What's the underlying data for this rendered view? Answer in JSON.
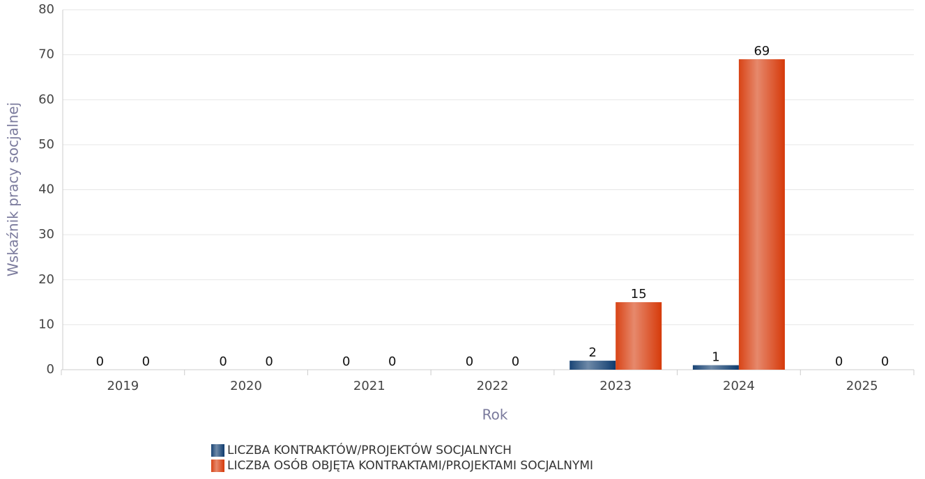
{
  "chart_data": {
    "type": "bar",
    "xlabel": "Rok",
    "ylabel": "Wskaźnik pracy socjalnej",
    "categories": [
      "2019",
      "2020",
      "2021",
      "2022",
      "2023",
      "2024",
      "2025"
    ],
    "series": [
      {
        "name": "LICZBA KONTRAKTÓW/PROJEKTÓW SOCJALNYCH",
        "color": "#0e3b6e",
        "values": [
          0,
          0,
          0,
          0,
          2,
          1,
          0
        ]
      },
      {
        "name": "LICZBA OSÓB OBJĘTA KONTRAKTAMI/PROJEKTAMI SOCJALNYMI",
        "color": "#d63a0a",
        "values": [
          0,
          0,
          0,
          0,
          15,
          69,
          0
        ]
      }
    ],
    "ylim": [
      0,
      80
    ],
    "yticks": [
      0,
      10,
      20,
      30,
      40,
      50,
      60,
      70,
      80
    ],
    "grid": true
  }
}
